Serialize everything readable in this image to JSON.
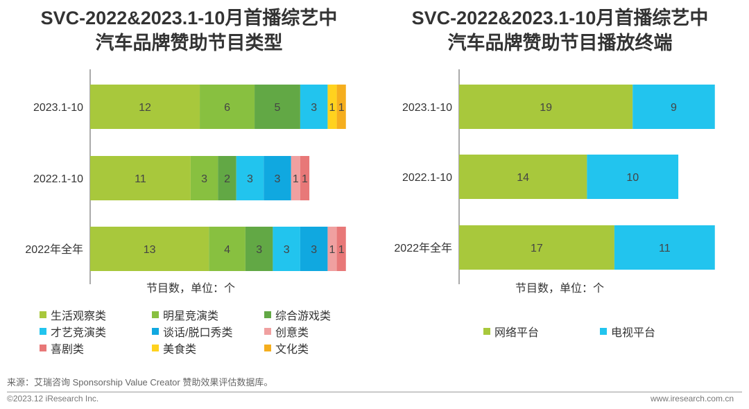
{
  "chart_data": [
    {
      "type": "bar",
      "orientation": "horizontal",
      "stacked": true,
      "title_line1": "SVC-2022&2023.1-10月首播综艺中",
      "title_line2": "汽车品牌赞助节目类型",
      "xlabel": "节目数，单位：个",
      "categories": [
        "2023.1-10",
        "2022.1-10",
        "2022年全年"
      ],
      "series": [
        {
          "name": "生活观察类",
          "color": "#a8c83c",
          "values": [
            12,
            11,
            13
          ]
        },
        {
          "name": "明星竞演类",
          "color": "#88c040",
          "values": [
            6,
            3,
            4
          ]
        },
        {
          "name": "综合游戏类",
          "color": "#62a845",
          "values": [
            5,
            2,
            3
          ]
        },
        {
          "name": "才艺竞演类",
          "color": "#22c4ee",
          "values": [
            3,
            3,
            3
          ]
        },
        {
          "name": "谈话/脱口秀类",
          "color": "#10a8e0",
          "values": [
            0,
            3,
            3
          ]
        },
        {
          "name": "创意类",
          "color": "#f0a0a0",
          "values": [
            0,
            1,
            1
          ]
        },
        {
          "name": "喜剧类",
          "color": "#e87878",
          "values": [
            0,
            1,
            1
          ]
        },
        {
          "name": "美食类",
          "color": "#ffd21e",
          "values": [
            1,
            0,
            0
          ]
        },
        {
          "name": "文化类",
          "color": "#f5ae1e",
          "values": [
            1,
            0,
            0
          ]
        }
      ],
      "legend_position": "bottom"
    },
    {
      "type": "bar",
      "orientation": "horizontal",
      "stacked": true,
      "title_line1": "SVC-2022&2023.1-10月首播综艺中",
      "title_line2": "汽车品牌赞助节目播放终端",
      "xlabel": "节目数，单位：个",
      "categories": [
        "2023.1-10",
        "2022.1-10",
        "2022年全年"
      ],
      "series": [
        {
          "name": "网络平台",
          "color": "#a8c83c",
          "values": [
            19,
            14,
            17
          ]
        },
        {
          "name": "电视平台",
          "color": "#22c4ee",
          "values": [
            9,
            10,
            11
          ]
        }
      ],
      "legend_position": "bottom"
    }
  ],
  "footer": {
    "source": "来源：艾瑞咨询 Sponsorship Value Creator 赞助效果评估数据库。",
    "copyright": "©2023.12 iResearch Inc.",
    "url": "www.iresearch.com.cn"
  }
}
